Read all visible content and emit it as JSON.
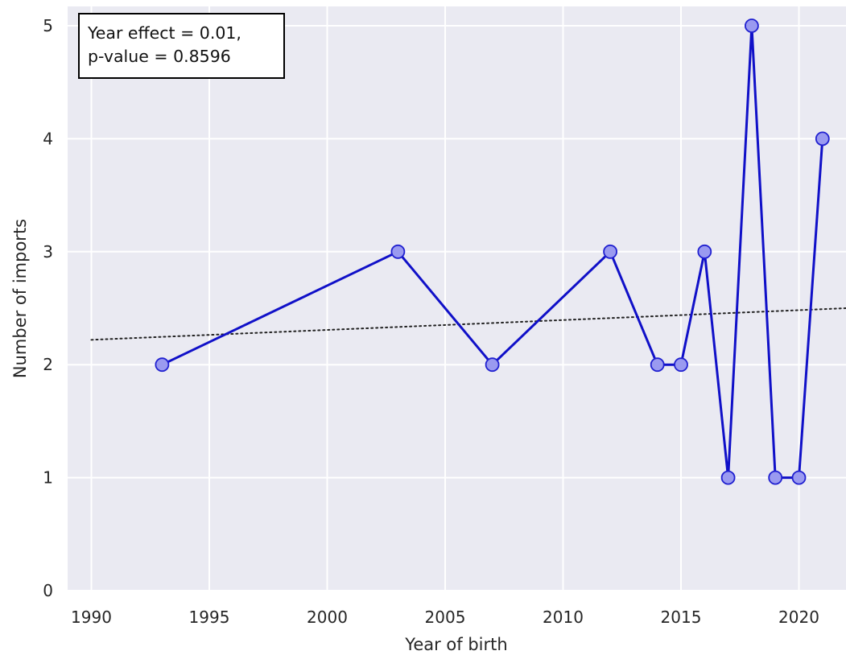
{
  "chart_data": {
    "type": "line",
    "xlabel": "Year of birth",
    "ylabel": "Number of imports",
    "xlim": [
      1989,
      2022
    ],
    "ylim": [
      0,
      5.2
    ],
    "xticks": [
      1990,
      1995,
      2000,
      2005,
      2010,
      2015,
      2020
    ],
    "yticks": [
      0,
      1,
      2,
      3,
      4,
      5
    ],
    "grid": true,
    "series": [
      {
        "x": [
          1993,
          2003,
          2007,
          2012,
          2014,
          2015,
          2016,
          2017,
          2018,
          2019,
          2020,
          2021
        ],
        "y": [
          2,
          3,
          2,
          3,
          2,
          2,
          3,
          1,
          5,
          1,
          1,
          4
        ],
        "style": "solid line with circle markers"
      }
    ],
    "trend_line": {
      "style": "dotted",
      "x": [
        1990,
        2022
      ],
      "y": [
        2.22,
        2.5
      ]
    },
    "annotation": {
      "lines": [
        "Year effect = 0.01,",
        "p-value = 0.8596"
      ],
      "placement": "top-left"
    },
    "colors": {
      "background": "#eaeaf2",
      "grid": "#ffffff",
      "line": "#1010c8",
      "marker_fill": "#9a9af0",
      "marker_edge": "#2020d0",
      "trend": "#222222"
    }
  }
}
